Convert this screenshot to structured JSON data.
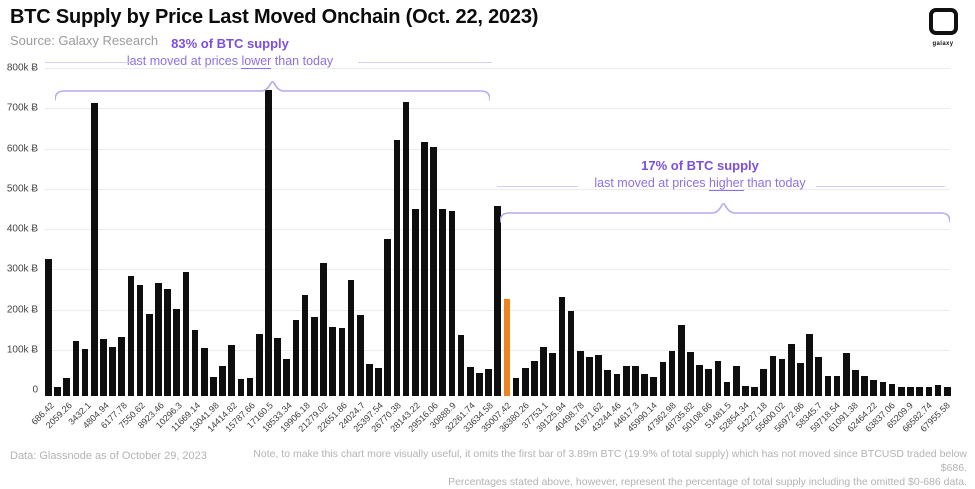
{
  "header": {
    "title": "BTC Supply by Price Last Moved Onchain (Oct. 22, 2023)",
    "source": "Source: Galaxy Research",
    "logo_word": "galaxy"
  },
  "annotation_lower": {
    "headline": "83% of BTC supply",
    "pre": "last moved at prices ",
    "underlined": "lower",
    "post": " than today"
  },
  "annotation_higher": {
    "headline": "17% of BTC supply",
    "pre": "last moved at prices ",
    "underlined": "higher",
    "post": " than today"
  },
  "footer": {
    "left": "Data: Glassnode as of October 29, 2023",
    "note_line1": "Note, to make this chart more visually useful, it omits  the first bar of 3.89m BTC (19.9% of total supply) which has not moved since BTCUSD traded below $686.",
    "note_line2": "Percentages stated above, however, represent the percentage of total supply including the omitted $0-686 data."
  },
  "chart_data": {
    "type": "bar",
    "title": "BTC Supply by Price Last Moved Onchain (Oct. 22, 2023)",
    "xlabel": "BTCUSD price bin (bin width $686.42)",
    "ylabel": "BTC supply (k Ƀ)",
    "ylim": [
      0,
      800000
    ],
    "grid": "horizontal",
    "y_ticks": [
      "800k Ƀ",
      "700k Ƀ",
      "600k Ƀ",
      "500k Ƀ",
      "400k Ƀ",
      "300k Ƀ",
      "200k Ƀ",
      "100k Ƀ",
      "0"
    ],
    "x_tick_labels": [
      "686.42",
      "2059.26",
      "3432.1",
      "4804.94",
      "6177.78",
      "7550.62",
      "8923.46",
      "10296.3",
      "11669.14",
      "13041.98",
      "14414.82",
      "15787.66",
      "17160.5",
      "18533.34",
      "19906.18",
      "21279.02",
      "22651.86",
      "24024.7",
      "25397.54",
      "26770.38",
      "28143.22",
      "29516.06",
      "30888.9",
      "32261.74",
      "33634.58",
      "35007.42",
      "36380.26",
      "37753.1",
      "39125.94",
      "40498.78",
      "41871.62",
      "43244.46",
      "44617.3",
      "45990.14",
      "47362.98",
      "48735.82",
      "50108.66",
      "51481.5",
      "52854.34",
      "54227.18",
      "55600.02",
      "56972.86",
      "58345.7",
      "59718.54",
      "61091.38",
      "62464.22",
      "63837.06",
      "65209.9",
      "66582.74",
      "67955.58"
    ],
    "x_labels_every_n_bars": 2,
    "values": [
      325000,
      1000,
      30000,
      121000,
      101000,
      712000,
      126000,
      106000,
      132000,
      283000,
      260000,
      188000,
      266000,
      250000,
      202000,
      293000,
      150000,
      105000,
      33000,
      60000,
      112000,
      27000,
      31000,
      138000,
      745000,
      128000,
      77000,
      175000,
      235000,
      182000,
      316000,
      157000,
      155000,
      273000,
      187000,
      65000,
      54000,
      375000,
      620000,
      715000,
      450000,
      615000,
      604000,
      450000,
      446000,
      137000,
      57000,
      43000,
      52000,
      456000,
      227000,
      29000,
      54000,
      72000,
      107000,
      93000,
      232000,
      196000,
      98000,
      82000,
      88000,
      50000,
      41000,
      59000,
      59000,
      41000,
      33000,
      70000,
      97000,
      161000,
      95000,
      63000,
      53000,
      73000,
      19000,
      59000,
      10000,
      8000,
      51000,
      85000,
      77000,
      115000,
      67000,
      138000,
      83000,
      34000,
      34000,
      91000,
      50000,
      34000,
      26000,
      20000,
      15000,
      8000,
      4000,
      6000,
      2000,
      12000,
      3000
    ],
    "highlight_index": 50,
    "highlight_x_label": "35007.42",
    "colors": {
      "bar": "#0e0e0e",
      "highlight": "#EF8322",
      "annotation": "#7b4fe0",
      "brace": "#b9a7ef"
    }
  }
}
